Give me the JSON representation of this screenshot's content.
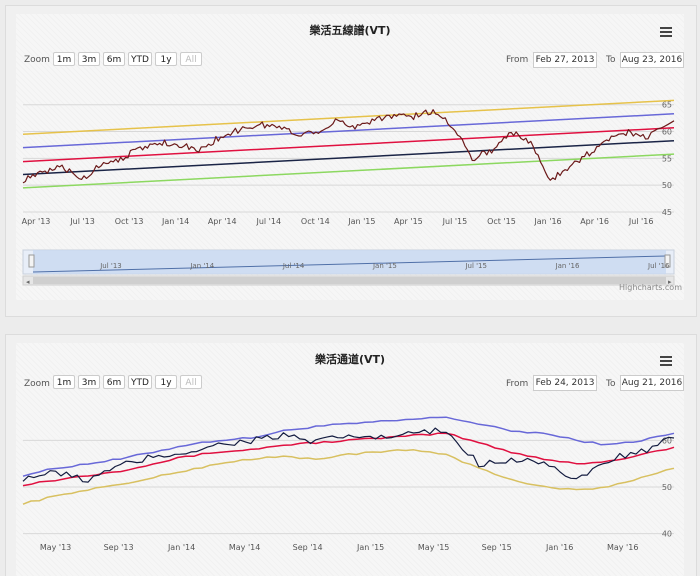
{
  "colors": {
    "price": "#6b1a1a",
    "top": "#e6c24a",
    "upper": "#6868d8",
    "mid": "#e01040",
    "lower": "#1a2446",
    "bottom": "#8cd860",
    "band_upper": "#6868d8",
    "band_mid": "#e01040",
    "band_lower": "#d8c060",
    "band_price": "#141c40"
  },
  "credit": "Highcharts.com",
  "zoom_label": "Zoom",
  "zoom_buttons": [
    "1m",
    "3m",
    "6m",
    "YTD",
    "1y",
    "All"
  ],
  "from_label": "From",
  "to_label": "To",
  "menu_icon": "hamburger-menu-icon",
  "chart_data": [
    {
      "type": "line",
      "title": "樂活五線譜(VT)",
      "range_from": "Feb 27, 2013",
      "range_to": "Aug 23, 2016",
      "ylim": [
        45,
        67
      ],
      "yticks": [
        "45",
        "50",
        "55",
        "60",
        "65"
      ],
      "xticks": [
        "Apr '13",
        "Jul '13",
        "Oct '13",
        "Jan '14",
        "Apr '14",
        "Jul '14",
        "Oct '14",
        "Jan '15",
        "Apr '15",
        "Jul '15",
        "Oct '15",
        "Jan '16",
        "Apr '16",
        "Jul '16"
      ],
      "navigator_ticks": [
        "Jul '13",
        "Jan '14",
        "Jul '14",
        "Jan '15",
        "Jul '15",
        "Jan '16",
        "Jul '16"
      ],
      "grid": true,
      "x": [
        0,
        0.03,
        0.06,
        0.09,
        0.12,
        0.15,
        0.18,
        0.21,
        0.24,
        0.27,
        0.3,
        0.33,
        0.36,
        0.39,
        0.42,
        0.45,
        0.48,
        0.51,
        0.54,
        0.57,
        0.6,
        0.63,
        0.66,
        0.69,
        0.72,
        0.75,
        0.78,
        0.81,
        0.84,
        0.87,
        0.9,
        0.93,
        0.96,
        1.0
      ],
      "series": [
        {
          "key": "top",
          "values": [
            [
              0,
              59.5
            ],
            [
              1,
              65.8
            ]
          ]
        },
        {
          "key": "upper",
          "values": [
            [
              0,
              57.0
            ],
            [
              1,
              63.3
            ]
          ]
        },
        {
          "key": "mid",
          "values": [
            [
              0,
              54.4
            ],
            [
              1,
              60.7
            ]
          ]
        },
        {
          "key": "lower",
          "values": [
            [
              0,
              52.0
            ],
            [
              1,
              58.3
            ]
          ]
        },
        {
          "key": "bottom",
          "values": [
            [
              0,
              49.5
            ],
            [
              1,
              55.8
            ]
          ]
        },
        {
          "key": "price",
          "values": [
            51.0,
            52.2,
            53.5,
            51.0,
            54.0,
            55.0,
            56.8,
            58.0,
            57.6,
            56.4,
            58.8,
            60.2,
            61.3,
            61.0,
            59.5,
            60.0,
            61.8,
            61.0,
            62.3,
            63.0,
            62.8,
            63.8,
            61.2,
            55.0,
            56.5,
            60.0,
            57.8,
            51.0,
            53.6,
            56.0,
            58.5,
            60.0,
            59.0,
            62.0
          ]
        }
      ]
    },
    {
      "type": "line",
      "title": "樂活通道(VT)",
      "range_from": "Feb 24, 2013",
      "range_to": "Aug 21, 2016",
      "ylim": [
        38,
        68
      ],
      "yticks": [
        "40",
        "50",
        "60"
      ],
      "xticks": [
        "May '13",
        "Sep '13",
        "Jan '14",
        "May '14",
        "Sep '14",
        "Jan '15",
        "May '15",
        "Sep '15",
        "Jan '16",
        "May '16"
      ],
      "grid": true,
      "x": [
        0,
        0.05,
        0.1,
        0.15,
        0.2,
        0.25,
        0.3,
        0.35,
        0.4,
        0.45,
        0.5,
        0.55,
        0.6,
        0.65,
        0.7,
        0.75,
        0.8,
        0.85,
        0.9,
        0.95,
        1.0
      ],
      "series": [
        {
          "key": "band_upper",
          "values": [
            52.5,
            54.0,
            55.0,
            56.0,
            57.5,
            59.0,
            60.0,
            60.5,
            62.0,
            63.0,
            63.5,
            64.0,
            64.5,
            65.0,
            63.5,
            62.0,
            61.5,
            60.0,
            59.0,
            60.0,
            61.5
          ]
        },
        {
          "key": "band_mid",
          "values": [
            50.5,
            51.5,
            52.5,
            53.5,
            55.0,
            56.5,
            57.5,
            58.0,
            59.0,
            59.5,
            60.0,
            60.5,
            61.0,
            61.5,
            59.5,
            57.5,
            56.0,
            55.0,
            55.5,
            57.0,
            58.5
          ]
        },
        {
          "key": "band_lower",
          "values": [
            46.5,
            48.0,
            49.5,
            50.5,
            52.0,
            53.5,
            55.0,
            56.0,
            56.5,
            56.0,
            57.0,
            57.5,
            58.0,
            57.0,
            54.0,
            51.5,
            50.0,
            49.5,
            50.0,
            52.0,
            54.0
          ]
        },
        {
          "key": "band_price",
          "values": [
            52.0,
            53.0,
            51.5,
            54.5,
            56.5,
            57.5,
            59.0,
            60.0,
            61.0,
            59.5,
            61.0,
            60.5,
            61.5,
            62.0,
            55.0,
            56.0,
            55.5,
            51.0,
            56.0,
            57.5,
            60.5
          ]
        }
      ]
    }
  ]
}
